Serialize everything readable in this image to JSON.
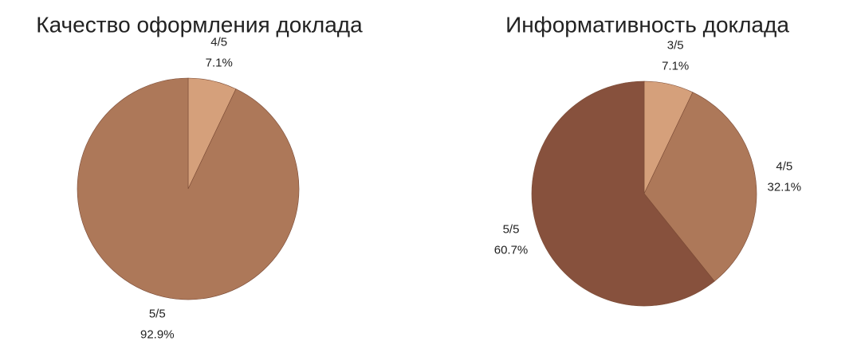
{
  "chart_data": [
    {
      "type": "pie",
      "title": "Качество оформления доклада",
      "categories": [
        "4/5",
        "5/5"
      ],
      "values": [
        7.1,
        92.9
      ],
      "value_labels": [
        "7.1%",
        "92.9%"
      ],
      "colors": [
        "#d5a07b",
        "#ad7859"
      ]
    },
    {
      "type": "pie",
      "title": "Информативность доклада",
      "categories": [
        "3/5",
        "4/5",
        "5/5"
      ],
      "values": [
        7.1,
        32.1,
        60.7
      ],
      "value_labels": [
        "7.1%",
        "32.1%",
        "60.7%"
      ],
      "colors": [
        "#d5a07b",
        "#ad7859",
        "#87513d"
      ]
    }
  ]
}
